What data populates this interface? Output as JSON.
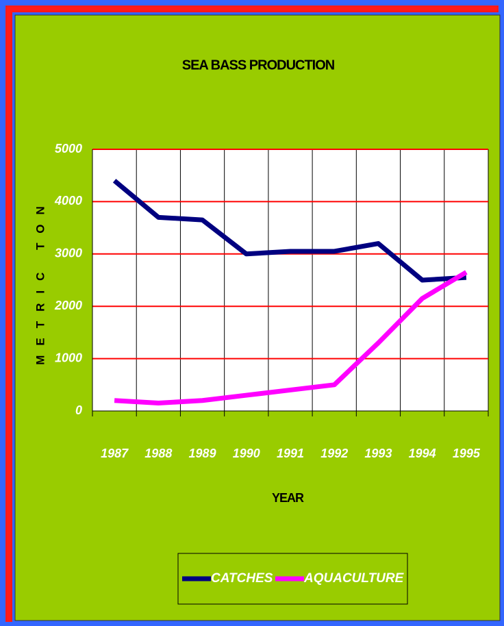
{
  "chart_data": {
    "type": "line",
    "title": "SEA BASS PRODUCTION",
    "x_label": "YEAR",
    "y_label": "METRIC TON",
    "categories": [
      "1987",
      "1988",
      "1989",
      "1990",
      "1991",
      "1992",
      "1993",
      "1994",
      "1995"
    ],
    "series": [
      {
        "name": "CATCHES",
        "color": "#000080",
        "values": [
          4400,
          3700,
          3650,
          3000,
          3050,
          3050,
          3200,
          2500,
          2550
        ]
      },
      {
        "name": "AQUACULTURE",
        "color": "#ff00ff",
        "values": [
          200,
          150,
          200,
          300,
          400,
          500,
          1300,
          2150,
          2650
        ]
      }
    ],
    "ylim": [
      0,
      5000
    ],
    "yticks": [
      0,
      1000,
      2000,
      3000,
      4000,
      5000
    ],
    "grid": true,
    "legend": "bottom"
  }
}
